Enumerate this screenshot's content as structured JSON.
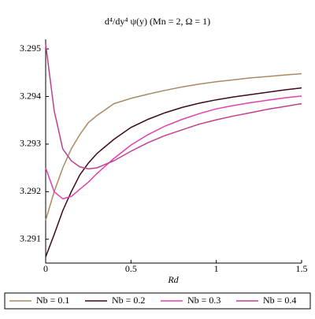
{
  "chart_data": {
    "type": "line",
    "title": "d⁴/dy⁴ ψ(y) (Mn = 2, Ω = 1)",
    "x_label": "Rd",
    "x": [
      0,
      0.05,
      0.1,
      0.15,
      0.2,
      0.25,
      0.3,
      0.4,
      0.5,
      0.6,
      0.7,
      0.8,
      0.9,
      1.0,
      1.1,
      1.2,
      1.3,
      1.4,
      1.5
    ],
    "series": [
      {
        "name": "Nb = 0.1",
        "color": "#a88a64",
        "values": [
          3.2914,
          3.292,
          3.2925,
          3.2929,
          3.2932,
          3.29345,
          3.2936,
          3.29385,
          3.29396,
          3.29405,
          3.29413,
          3.2942,
          3.29426,
          3.29431,
          3.29435,
          3.29439,
          3.29442,
          3.29445,
          3.29448
        ]
      },
      {
        "name": "Nb = 0.2",
        "color": "#3c0a1e",
        "values": [
          3.29063,
          3.2911,
          3.2916,
          3.292,
          3.29235,
          3.2926,
          3.2928,
          3.2931,
          3.29335,
          3.29352,
          3.29366,
          3.29377,
          3.29386,
          3.29393,
          3.29399,
          3.29404,
          3.29409,
          3.29414,
          3.29418
        ]
      },
      {
        "name": "Nb = 0.3",
        "color": "#e040b0",
        "values": [
          3.2925,
          3.292,
          3.29185,
          3.2919,
          3.29205,
          3.2922,
          3.29238,
          3.2927,
          3.29298,
          3.2932,
          3.29338,
          3.29352,
          3.29364,
          3.29374,
          3.29381,
          3.29387,
          3.29392,
          3.29397,
          3.29401
        ]
      },
      {
        "name": "Nb = 0.4",
        "color": "#c0408c",
        "values": [
          3.2951,
          3.2937,
          3.2929,
          3.29265,
          3.29252,
          3.29248,
          3.2925,
          3.29265,
          3.29285,
          3.29303,
          3.29318,
          3.2933,
          3.29342,
          3.29351,
          3.29359,
          3.29366,
          3.29373,
          3.29379,
          3.29385
        ]
      }
    ],
    "xlim": [
      0,
      1.5
    ],
    "xticks": [
      0,
      0.5,
      1,
      1.5
    ],
    "ylim": [
      3.2905,
      3.2952
    ],
    "yticks": [
      3.291,
      3.292,
      3.293,
      3.294,
      3.295
    ],
    "legend": "bottom"
  }
}
